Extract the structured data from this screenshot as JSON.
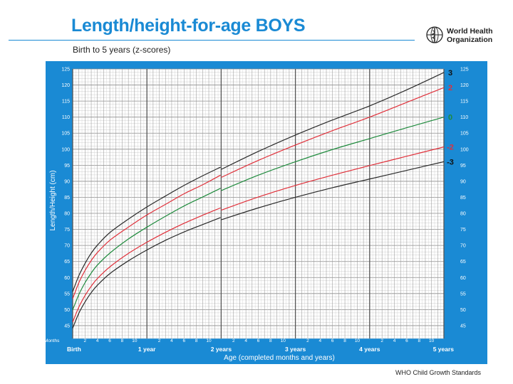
{
  "header": {
    "title": "Length/height-for-age BOYS",
    "subtitle": "Birth to 5 years (z-scores)",
    "org_line1": "World Health",
    "org_line2": "Organization"
  },
  "footer": {
    "text": "WHO Child Growth Standards"
  },
  "colors": {
    "frame": "#1a8ad4",
    "plot_bg": "#ffffff",
    "red": "#e0303a",
    "green": "#1e8a3c",
    "black": "#2a2a2a"
  },
  "chart_data": {
    "type": "line",
    "title": "Length/height-for-age BOYS",
    "xlabel": "Age (completed months and years)",
    "ylabel": "Length/Height (cm)",
    "x_unit_label": "Months",
    "xlim": [
      0,
      60
    ],
    "ylim": [
      41,
      125
    ],
    "y_ticks": [
      45,
      50,
      55,
      60,
      65,
      70,
      75,
      80,
      85,
      90,
      95,
      100,
      105,
      110,
      115,
      120,
      125
    ],
    "x_month_ticks": [
      {
        "m": 2,
        "label": "2"
      },
      {
        "m": 4,
        "label": "4"
      },
      {
        "m": 6,
        "label": "6"
      },
      {
        "m": 8,
        "label": "8"
      },
      {
        "m": 10,
        "label": "10"
      },
      {
        "m": 14,
        "label": "2"
      },
      {
        "m": 16,
        "label": "4"
      },
      {
        "m": 18,
        "label": "6"
      },
      {
        "m": 20,
        "label": "8"
      },
      {
        "m": 22,
        "label": "10"
      },
      {
        "m": 26,
        "label": "2"
      },
      {
        "m": 28,
        "label": "4"
      },
      {
        "m": 30,
        "label": "6"
      },
      {
        "m": 32,
        "label": "8"
      },
      {
        "m": 34,
        "label": "10"
      },
      {
        "m": 38,
        "label": "2"
      },
      {
        "m": 40,
        "label": "4"
      },
      {
        "m": 42,
        "label": "6"
      },
      {
        "m": 44,
        "label": "8"
      },
      {
        "m": 46,
        "label": "10"
      },
      {
        "m": 50,
        "label": "2"
      },
      {
        "m": 52,
        "label": "4"
      },
      {
        "m": 54,
        "label": "6"
      },
      {
        "m": 56,
        "label": "8"
      },
      {
        "m": 58,
        "label": "10"
      }
    ],
    "x_year_ticks": [
      {
        "m": 0,
        "label": "Birth"
      },
      {
        "m": 12,
        "label": "1 year"
      },
      {
        "m": 24,
        "label": "2 years"
      },
      {
        "m": 36,
        "label": "3 years"
      },
      {
        "m": 48,
        "label": "4 years"
      },
      {
        "m": 60,
        "label": "5 years"
      }
    ],
    "length_to_height_shift_month": 24,
    "series": [
      {
        "name": "3",
        "color": "#2a2a2a",
        "x": [
          0,
          1,
          2,
          3,
          4,
          6,
          9,
          12,
          15,
          18,
          21,
          23.9,
          24,
          30,
          36,
          42,
          48,
          54,
          60
        ],
        "values": [
          55.6,
          60.6,
          64.4,
          67.6,
          70.1,
          74.0,
          78.2,
          82.0,
          85.4,
          88.7,
          91.7,
          94.4,
          93.7,
          99.3,
          104.4,
          109.1,
          113.5,
          118.5,
          123.9
        ]
      },
      {
        "name": "2",
        "color": "#e0303a",
        "x": [
          0,
          1,
          2,
          3,
          4,
          6,
          9,
          12,
          15,
          18,
          21,
          23.9,
          24,
          30,
          36,
          42,
          48,
          54,
          60
        ],
        "values": [
          53.4,
          58.4,
          62.2,
          65.3,
          67.8,
          71.6,
          75.7,
          79.5,
          82.8,
          86.1,
          88.9,
          91.9,
          91.2,
          96.5,
          101.3,
          105.8,
          110.0,
          114.6,
          119.2
        ]
      },
      {
        "name": "0",
        "color": "#1e8a3c",
        "x": [
          0,
          1,
          2,
          3,
          4,
          6,
          9,
          12,
          15,
          18,
          21,
          23.9,
          24,
          30,
          36,
          42,
          48,
          54,
          60
        ],
        "values": [
          49.9,
          54.7,
          58.4,
          61.4,
          63.9,
          67.6,
          72.0,
          75.7,
          79.1,
          82.3,
          85.1,
          87.8,
          87.1,
          91.9,
          96.1,
          99.9,
          103.3,
          106.7,
          110.0
        ]
      },
      {
        "name": "-2",
        "color": "#e0303a",
        "x": [
          0,
          1,
          2,
          3,
          4,
          6,
          9,
          12,
          15,
          18,
          21,
          23.9,
          24,
          30,
          36,
          42,
          48,
          54,
          60
        ],
        "values": [
          46.1,
          50.8,
          54.4,
          57.3,
          59.7,
          63.3,
          67.5,
          71.0,
          74.1,
          76.9,
          79.4,
          81.7,
          81.0,
          85.1,
          88.7,
          91.9,
          94.9,
          97.8,
          100.7
        ]
      },
      {
        "name": "-3",
        "color": "#2a2a2a",
        "x": [
          0,
          1,
          2,
          3,
          4,
          6,
          9,
          12,
          15,
          18,
          21,
          23.9,
          24,
          30,
          36,
          42,
          48,
          54,
          60
        ],
        "values": [
          44.2,
          48.9,
          52.4,
          55.3,
          57.6,
          61.2,
          65.2,
          68.6,
          71.6,
          74.2,
          76.5,
          78.7,
          78.0,
          81.7,
          85.0,
          88.0,
          90.7,
          93.4,
          96.1
        ]
      }
    ]
  }
}
